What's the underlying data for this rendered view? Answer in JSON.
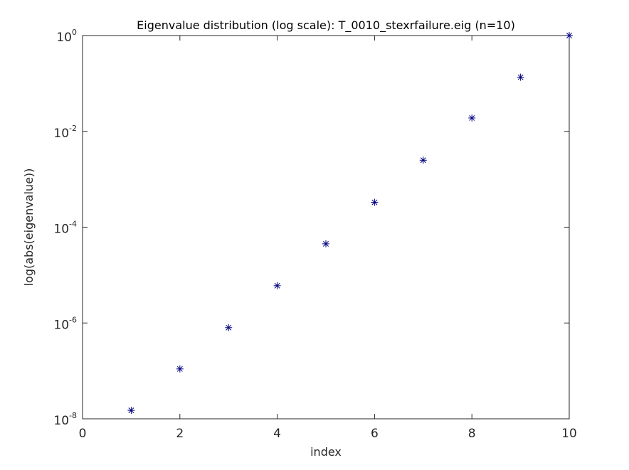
{
  "chart_data": {
    "type": "scatter",
    "title": "Eigenvalue distribution (log scale): T_0010_stexrfailure.eig (n=10)",
    "xlabel": "index",
    "ylabel": "log(abs(eigenvalue))",
    "xlim": [
      0,
      10
    ],
    "ylim": [
      1e-08,
      1
    ],
    "yscale": "log",
    "grid": false,
    "marker": "asterisk",
    "colors": {
      "marker": "#000080",
      "axes": "#262626"
    },
    "x_ticks": [
      "0",
      "2",
      "4",
      "6",
      "8",
      "10"
    ],
    "x_tick_values": [
      0,
      2,
      4,
      6,
      8,
      10
    ],
    "y_ticks": [
      {
        "base": "10",
        "exp": "-8",
        "value": 1e-08
      },
      {
        "base": "10",
        "exp": "-6",
        "value": 1e-06
      },
      {
        "base": "10",
        "exp": "-4",
        "value": 0.0001
      },
      {
        "base": "10",
        "exp": "-2",
        "value": 0.01
      },
      {
        "base": "10",
        "exp": "0",
        "value": 1
      }
    ],
    "x": [
      1,
      2,
      3,
      4,
      5,
      6,
      7,
      8,
      9,
      10
    ],
    "y": [
      1.5e-08,
      1.1e-07,
      8e-07,
      6e-06,
      4.5e-05,
      0.00033,
      0.0025,
      0.019,
      0.135,
      1.0
    ]
  }
}
